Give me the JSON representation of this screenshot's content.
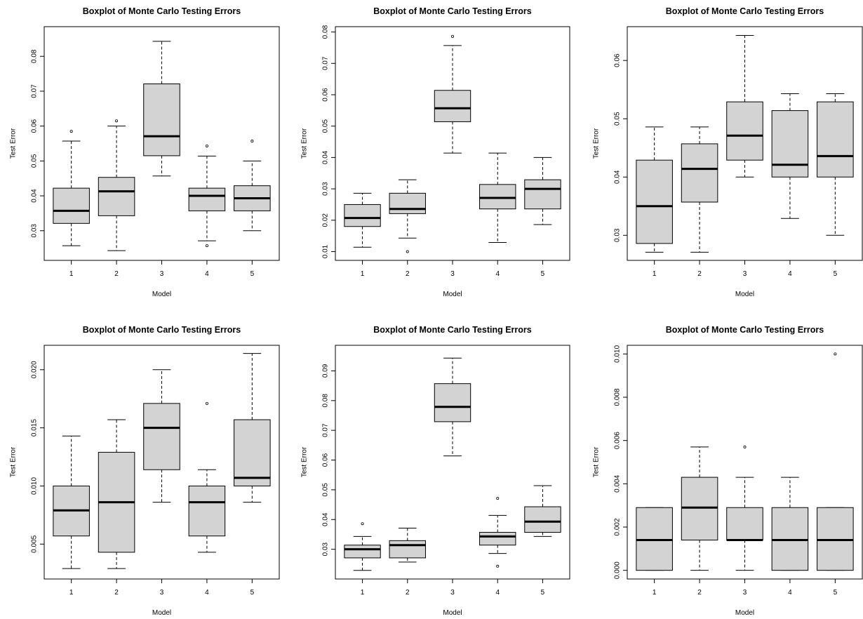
{
  "chart_data": [
    {
      "type": "boxplot",
      "title": "Boxplot of Monte Carlo Testing Errors",
      "xlabel": "Model",
      "ylabel": "Test Error",
      "ylim": [
        0.0215,
        0.0885
      ],
      "yticks": [
        "0.03",
        "0.04",
        "0.05",
        "0.06",
        "0.07",
        "0.08"
      ],
      "categories": [
        "1",
        "2",
        "3",
        "4",
        "5"
      ],
      "boxes": [
        {
          "whisker_low": 0.0257,
          "q1": 0.0321,
          "median": 0.0357,
          "q3": 0.0422,
          "whisker_high": 0.0557,
          "outliers": [
            0.0585
          ]
        },
        {
          "whisker_low": 0.0243,
          "q1": 0.0343,
          "median": 0.0413,
          "q3": 0.0453,
          "whisker_high": 0.06,
          "outliers": [
            0.0615
          ]
        },
        {
          "whisker_low": 0.0457,
          "q1": 0.0515,
          "median": 0.0571,
          "q3": 0.0721,
          "whisker_high": 0.0843,
          "outliers": []
        },
        {
          "whisker_low": 0.0271,
          "q1": 0.0357,
          "median": 0.04,
          "q3": 0.0422,
          "whisker_high": 0.0514,
          "outliers": [
            0.0257,
            0.0543
          ]
        },
        {
          "whisker_low": 0.03,
          "q1": 0.0357,
          "median": 0.0393,
          "q3": 0.0429,
          "whisker_high": 0.05,
          "outliers": [
            0.0557
          ]
        }
      ]
    },
    {
      "type": "boxplot",
      "title": "Boxplot of Monte Carlo Testing Errors",
      "xlabel": "Model",
      "ylabel": "Test Error",
      "ylim": [
        0.0072,
        0.0817
      ],
      "yticks": [
        "0.01",
        "0.02",
        "0.03",
        "0.04",
        "0.05",
        "0.06",
        "0.07",
        "0.08"
      ],
      "categories": [
        "1",
        "2",
        "3",
        "4",
        "5"
      ],
      "boxes": [
        {
          "whisker_low": 0.0114,
          "q1": 0.018,
          "median": 0.0207,
          "q3": 0.025,
          "whisker_high": 0.0286,
          "outliers": []
        },
        {
          "whisker_low": 0.0143,
          "q1": 0.0221,
          "median": 0.0236,
          "q3": 0.0286,
          "whisker_high": 0.0329,
          "outliers": [
            0.01
          ]
        },
        {
          "whisker_low": 0.0414,
          "q1": 0.0514,
          "median": 0.0557,
          "q3": 0.0614,
          "whisker_high": 0.0757,
          "outliers": [
            0.0786
          ]
        },
        {
          "whisker_low": 0.0129,
          "q1": 0.0236,
          "median": 0.0271,
          "q3": 0.0314,
          "whisker_high": 0.0414,
          "outliers": []
        },
        {
          "whisker_low": 0.0186,
          "q1": 0.0236,
          "median": 0.03,
          "q3": 0.0329,
          "whisker_high": 0.04,
          "outliers": []
        }
      ]
    },
    {
      "type": "boxplot",
      "title": "Boxplot of Monte Carlo Testing Errors",
      "xlabel": "Model",
      "ylabel": "Test Error",
      "ylim": [
        0.0257,
        0.0658
      ],
      "yticks": [
        "0.03",
        "0.04",
        "0.05",
        "0.06"
      ],
      "categories": [
        "1",
        "2",
        "3",
        "4",
        "5"
      ],
      "boxes": [
        {
          "whisker_low": 0.0271,
          "q1": 0.0286,
          "median": 0.035,
          "q3": 0.0429,
          "whisker_high": 0.0486,
          "outliers": []
        },
        {
          "whisker_low": 0.0271,
          "q1": 0.0357,
          "median": 0.0414,
          "q3": 0.0457,
          "whisker_high": 0.0486,
          "outliers": []
        },
        {
          "whisker_low": 0.04,
          "q1": 0.0429,
          "median": 0.0471,
          "q3": 0.0529,
          "whisker_high": 0.0643,
          "outliers": []
        },
        {
          "whisker_low": 0.0329,
          "q1": 0.04,
          "median": 0.0421,
          "q3": 0.0514,
          "whisker_high": 0.0543,
          "outliers": []
        },
        {
          "whisker_low": 0.03,
          "q1": 0.04,
          "median": 0.0436,
          "q3": 0.0529,
          "whisker_high": 0.0543,
          "outliers": []
        }
      ]
    },
    {
      "type": "boxplot",
      "title": "Boxplot of Monte Carlo Testing Errors",
      "xlabel": "Model",
      "ylabel": "Test Error",
      "ylim": [
        0.002,
        0.0221
      ],
      "yticks": [
        "0.005",
        "0.010",
        "0.015",
        "0.020"
      ],
      "categories": [
        "1",
        "2",
        "3",
        "4",
        "5"
      ],
      "boxes": [
        {
          "whisker_low": 0.0029,
          "q1": 0.0057,
          "median": 0.0079,
          "q3": 0.01,
          "whisker_high": 0.0143,
          "outliers": []
        },
        {
          "whisker_low": 0.0029,
          "q1": 0.0043,
          "median": 0.0086,
          "q3": 0.0129,
          "whisker_high": 0.0157,
          "outliers": []
        },
        {
          "whisker_low": 0.0086,
          "q1": 0.0114,
          "median": 0.015,
          "q3": 0.0171,
          "whisker_high": 0.02,
          "outliers": []
        },
        {
          "whisker_low": 0.0043,
          "q1": 0.0057,
          "median": 0.0086,
          "q3": 0.01,
          "whisker_high": 0.0114,
          "outliers": [
            0.0171
          ]
        },
        {
          "whisker_low": 0.0086,
          "q1": 0.01,
          "median": 0.0107,
          "q3": 0.0157,
          "whisker_high": 0.0214,
          "outliers": []
        }
      ]
    },
    {
      "type": "boxplot",
      "title": "Boxplot of Monte Carlo Testing Errors",
      "xlabel": "Model",
      "ylabel": "Test Error",
      "ylim": [
        0.02,
        0.0986
      ],
      "yticks": [
        "0.03",
        "0.04",
        "0.05",
        "0.06",
        "0.07",
        "0.08",
        "0.09"
      ],
      "categories": [
        "1",
        "2",
        "3",
        "4",
        "5"
      ],
      "boxes": [
        {
          "whisker_low": 0.0229,
          "q1": 0.0271,
          "median": 0.03,
          "q3": 0.0314,
          "whisker_high": 0.0343,
          "outliers": [
            0.0386
          ]
        },
        {
          "whisker_low": 0.0257,
          "q1": 0.0271,
          "median": 0.0314,
          "q3": 0.0329,
          "whisker_high": 0.0371,
          "outliers": []
        },
        {
          "whisker_low": 0.0614,
          "q1": 0.0729,
          "median": 0.0779,
          "q3": 0.0857,
          "whisker_high": 0.0943,
          "outliers": []
        },
        {
          "whisker_low": 0.0286,
          "q1": 0.0314,
          "median": 0.0343,
          "q3": 0.0357,
          "whisker_high": 0.0414,
          "outliers": [
            0.0243,
            0.0471
          ]
        },
        {
          "whisker_low": 0.0343,
          "q1": 0.0357,
          "median": 0.0393,
          "q3": 0.0443,
          "whisker_high": 0.0514,
          "outliers": []
        }
      ]
    },
    {
      "type": "boxplot",
      "title": "Boxplot of Monte Carlo Testing Errors",
      "xlabel": "Model",
      "ylabel": "Test Error",
      "ylim": [
        -0.0004,
        0.0104
      ],
      "yticks": [
        "0.000",
        "0.002",
        "0.004",
        "0.006",
        "0.008",
        "0.010"
      ],
      "categories": [
        "1",
        "2",
        "3",
        "4",
        "5"
      ],
      "boxes": [
        {
          "whisker_low": 0.0,
          "q1": 0.0,
          "median": 0.0014,
          "q3": 0.0029,
          "whisker_high": 0.0029,
          "outliers": []
        },
        {
          "whisker_low": 0.0,
          "q1": 0.0014,
          "median": 0.0029,
          "q3": 0.0043,
          "whisker_high": 0.0057,
          "outliers": []
        },
        {
          "whisker_low": 0.0,
          "q1": 0.0014,
          "median": 0.0014,
          "q3": 0.0029,
          "whisker_high": 0.0043,
          "outliers": [
            0.0057
          ]
        },
        {
          "whisker_low": 0.0,
          "q1": 0.0,
          "median": 0.0014,
          "q3": 0.0029,
          "whisker_high": 0.0043,
          "outliers": []
        },
        {
          "whisker_low": 0.0,
          "q1": 0.0,
          "median": 0.0014,
          "q3": 0.0029,
          "whisker_high": 0.0029,
          "outliers": [
            0.01
          ]
        }
      ]
    }
  ]
}
